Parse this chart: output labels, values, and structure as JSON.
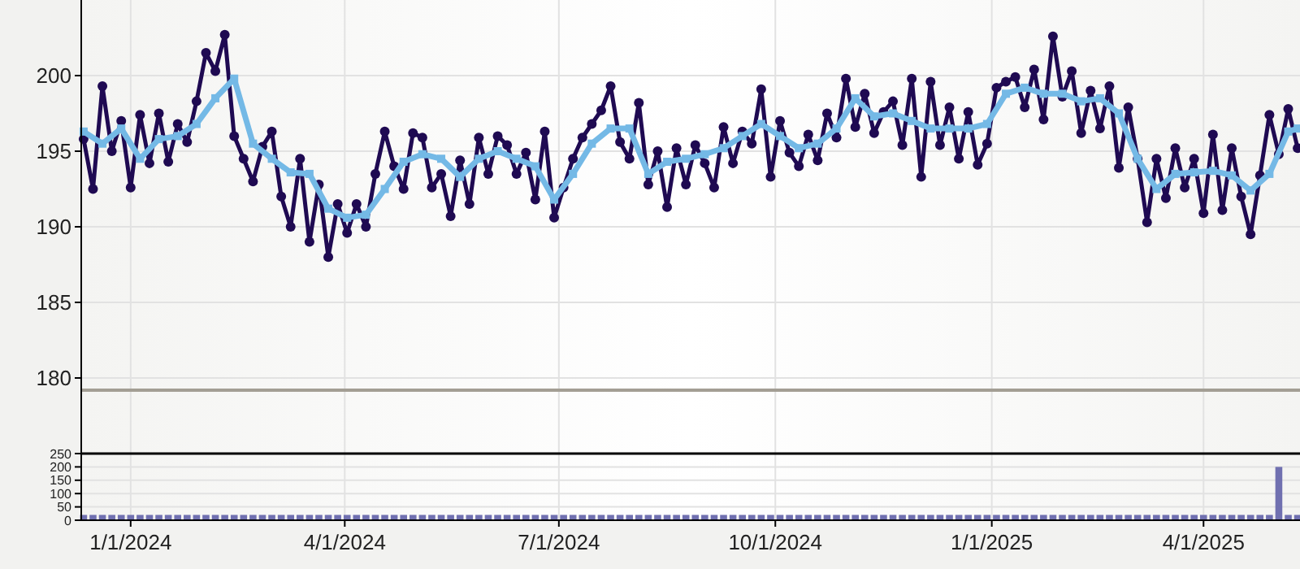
{
  "chart_data": [
    {
      "type": "line",
      "tick_labels": "y",
      "grid": true,
      "xlim": [
        "2023-12-11",
        "2025-05-12"
      ],
      "ylim": [
        175,
        205
      ],
      "yticks": [
        180,
        185,
        190,
        195,
        200
      ],
      "xticks": [
        {
          "value": "2024-01-01",
          "label": null
        },
        {
          "value": "2024-04-01",
          "label": null
        },
        {
          "value": "2024-07-01",
          "label": null
        },
        {
          "value": "2024-10-01",
          "label": null
        },
        {
          "value": "2025-01-01",
          "label": null
        },
        {
          "value": "2025-04-01",
          "label": null
        }
      ],
      "ref_lines": [
        {
          "axis": "y",
          "value": 179.2,
          "color": "#a39e94"
        }
      ],
      "series": [
        {
          "color": "#1f0a52",
          "marker": "circle",
          "x": [
            "2023-12-12",
            "2023-12-16",
            "2023-12-20",
            "2023-12-24",
            "2023-12-28",
            "2024-01-01",
            "2024-01-05",
            "2024-01-09",
            "2024-01-13",
            "2024-01-17",
            "2024-01-21",
            "2024-01-25",
            "2024-01-29",
            "2024-02-02",
            "2024-02-06",
            "2024-02-10",
            "2024-02-14",
            "2024-02-18",
            "2024-02-22",
            "2024-02-26",
            "2024-03-01",
            "2024-03-05",
            "2024-03-09",
            "2024-03-13",
            "2024-03-17",
            "2024-03-21",
            "2024-03-25",
            "2024-03-29",
            "2024-04-02",
            "2024-04-06",
            "2024-04-10",
            "2024-04-14",
            "2024-04-18",
            "2024-04-22",
            "2024-04-26",
            "2024-04-30",
            "2024-05-04",
            "2024-05-08",
            "2024-05-12",
            "2024-05-16",
            "2024-05-20",
            "2024-05-24",
            "2024-05-28",
            "2024-06-01",
            "2024-06-05",
            "2024-06-09",
            "2024-06-13",
            "2024-06-17",
            "2024-06-21",
            "2024-06-25",
            "2024-06-29",
            "2024-07-03",
            "2024-07-07",
            "2024-07-11",
            "2024-07-15",
            "2024-07-19",
            "2024-07-23",
            "2024-07-27",
            "2024-07-31",
            "2024-08-04",
            "2024-08-08",
            "2024-08-12",
            "2024-08-16",
            "2024-08-20",
            "2024-08-24",
            "2024-08-28",
            "2024-09-01",
            "2024-09-05",
            "2024-09-09",
            "2024-09-13",
            "2024-09-17",
            "2024-09-21",
            "2024-09-25",
            "2024-09-29",
            "2024-10-03",
            "2024-10-07",
            "2024-10-11",
            "2024-10-15",
            "2024-10-19",
            "2024-10-23",
            "2024-10-27",
            "2024-10-31",
            "2024-11-04",
            "2024-11-08",
            "2024-11-12",
            "2024-11-16",
            "2024-11-20",
            "2024-11-24",
            "2024-11-28",
            "2024-12-02",
            "2024-12-06",
            "2024-12-10",
            "2024-12-14",
            "2024-12-18",
            "2024-12-22",
            "2024-12-26",
            "2024-12-30",
            "2025-01-03",
            "2025-01-07",
            "2025-01-11",
            "2025-01-15",
            "2025-01-19",
            "2025-01-23",
            "2025-01-27",
            "2025-01-31",
            "2025-02-04",
            "2025-02-08",
            "2025-02-12",
            "2025-02-16",
            "2025-02-20",
            "2025-02-24",
            "2025-02-28",
            "2025-03-04",
            "2025-03-08",
            "2025-03-12",
            "2025-03-16",
            "2025-03-20",
            "2025-03-24",
            "2025-03-28",
            "2025-04-01",
            "2025-04-05",
            "2025-04-09",
            "2025-04-13",
            "2025-04-17",
            "2025-04-21",
            "2025-04-25",
            "2025-04-29",
            "2025-05-03",
            "2025-05-07",
            "2025-05-11"
          ],
          "values": [
            195.8,
            192.5,
            199.3,
            195,
            197,
            192.6,
            197.4,
            194.2,
            197.5,
            194.3,
            196.8,
            195.6,
            198.3,
            201.5,
            200.3,
            202.7,
            196,
            194.5,
            193,
            195.3,
            196.3,
            192,
            190,
            194.5,
            189,
            192.8,
            188,
            191.5,
            189.6,
            191.5,
            190,
            193.5,
            196.3,
            194,
            192.5,
            196.2,
            195.9,
            192.6,
            193.5,
            190.7,
            194.4,
            191.5,
            195.9,
            193.5,
            196,
            195.4,
            193.5,
            194.9,
            191.8,
            196.3,
            190.6,
            192.6,
            194.5,
            195.9,
            196.8,
            197.7,
            199.3,
            195.6,
            194.5,
            198.2,
            192.8,
            195,
            191.3,
            195.2,
            192.8,
            195.4,
            194.2,
            192.6,
            196.6,
            194.2,
            196.3,
            195.5,
            199.1,
            193.3,
            197,
            194.9,
            194,
            196.1,
            194.4,
            197.5,
            195.9,
            199.8,
            196.6,
            198.8,
            196.2,
            197.6,
            198.3,
            195.4,
            199.8,
            193.3,
            199.6,
            195.4,
            197.9,
            194.5,
            197.6,
            194.1,
            195.5,
            199.2,
            199.6,
            199.9,
            197.9,
            200.4,
            197.1,
            202.6,
            198.6,
            200.3,
            196.2,
            199,
            196.5,
            199.3,
            193.9,
            197.9,
            194.5,
            190.3,
            194.5,
            191.9,
            195.2,
            192.6,
            194.5,
            190.9,
            196.1,
            191.1,
            195.2,
            192,
            189.5,
            193.4,
            197.4,
            194.8,
            197.8,
            195.2
          ]
        },
        {
          "color": "#74b9e6",
          "marker": "square",
          "x": [
            "2023-12-12",
            "2023-12-20",
            "2023-12-28",
            "2024-01-05",
            "2024-01-13",
            "2024-01-21",
            "2024-01-29",
            "2024-02-06",
            "2024-02-14",
            "2024-02-22",
            "2024-03-01",
            "2024-03-09",
            "2024-03-17",
            "2024-03-25",
            "2024-04-02",
            "2024-04-10",
            "2024-04-18",
            "2024-04-26",
            "2024-05-04",
            "2024-05-12",
            "2024-05-20",
            "2024-05-28",
            "2024-06-05",
            "2024-06-13",
            "2024-06-21",
            "2024-06-29",
            "2024-07-07",
            "2024-07-15",
            "2024-07-23",
            "2024-07-31",
            "2024-08-08",
            "2024-08-16",
            "2024-08-24",
            "2024-09-01",
            "2024-09-09",
            "2024-09-17",
            "2024-09-25",
            "2024-10-03",
            "2024-10-11",
            "2024-10-19",
            "2024-10-27",
            "2024-11-04",
            "2024-11-12",
            "2024-11-20",
            "2024-11-28",
            "2024-12-06",
            "2024-12-14",
            "2024-12-22",
            "2024-12-30",
            "2025-01-07",
            "2025-01-15",
            "2025-01-23",
            "2025-01-31",
            "2025-02-08",
            "2025-02-16",
            "2025-02-24",
            "2025-03-04",
            "2025-03-12",
            "2025-03-20",
            "2025-03-28",
            "2025-04-05",
            "2025-04-13",
            "2025-04-21",
            "2025-04-29",
            "2025-05-07",
            "2025-05-11"
          ],
          "values": [
            196.3,
            195.5,
            196.5,
            194.5,
            195.8,
            196,
            196.8,
            198.5,
            199.8,
            195.5,
            194.5,
            193.6,
            193.5,
            191.2,
            190.6,
            190.8,
            192.5,
            194.3,
            194.8,
            194.5,
            193.3,
            194.5,
            195,
            194.5,
            194,
            191.8,
            193.5,
            195.5,
            196.5,
            196.5,
            193.5,
            194.3,
            194.5,
            194.8,
            195.2,
            196,
            196.8,
            196,
            195.2,
            195.5,
            196.5,
            198.5,
            197.3,
            197.5,
            197,
            196.5,
            196.5,
            196.5,
            196.8,
            198.8,
            199.2,
            198.8,
            198.8,
            198.3,
            198.5,
            197.5,
            194.5,
            192.5,
            193.5,
            193.6,
            193.7,
            193.4,
            192.4,
            193.5,
            196.3,
            196.5
          ]
        }
      ]
    },
    {
      "type": "bar",
      "grid": true,
      "xlim": [
        "2023-12-11",
        "2025-05-12"
      ],
      "ylim": [
        0,
        250
      ],
      "yticks": [
        0,
        50,
        100,
        150,
        200,
        250
      ],
      "xticks": [
        {
          "value": "2024-01-01",
          "label": "1/1/2024"
        },
        {
          "value": "2024-04-01",
          "label": "4/1/2024"
        },
        {
          "value": "2024-07-01",
          "label": "7/1/2024"
        },
        {
          "value": "2024-10-01",
          "label": "10/1/2024"
        },
        {
          "value": "2025-01-01",
          "label": "1/1/2025"
        },
        {
          "value": "2025-04-01",
          "label": "4/1/2025"
        }
      ],
      "series": [
        {
          "color": "#7070b0",
          "x": [
            "2023-12-12",
            "2023-12-16",
            "2023-12-20",
            "2023-12-24",
            "2023-12-28",
            "2024-01-01",
            "2024-01-05",
            "2024-01-09",
            "2024-01-13",
            "2024-01-17",
            "2024-01-21",
            "2024-01-25",
            "2024-01-29",
            "2024-02-02",
            "2024-02-06",
            "2024-02-10",
            "2024-02-14",
            "2024-02-18",
            "2024-02-22",
            "2024-02-26",
            "2024-03-01",
            "2024-03-05",
            "2024-03-09",
            "2024-03-13",
            "2024-03-17",
            "2024-03-21",
            "2024-03-25",
            "2024-03-29",
            "2024-04-02",
            "2024-04-06",
            "2024-04-10",
            "2024-04-14",
            "2024-04-18",
            "2024-04-22",
            "2024-04-26",
            "2024-04-30",
            "2024-05-04",
            "2024-05-08",
            "2024-05-12",
            "2024-05-16",
            "2024-05-20",
            "2024-05-24",
            "2024-05-28",
            "2024-06-01",
            "2024-06-05",
            "2024-06-09",
            "2024-06-13",
            "2024-06-17",
            "2024-06-21",
            "2024-06-25",
            "2024-06-29",
            "2024-07-03",
            "2024-07-07",
            "2024-07-11",
            "2024-07-15",
            "2024-07-19",
            "2024-07-23",
            "2024-07-27",
            "2024-07-31",
            "2024-08-04",
            "2024-08-08",
            "2024-08-12",
            "2024-08-16",
            "2024-08-20",
            "2024-08-24",
            "2024-08-28",
            "2024-09-01",
            "2024-09-05",
            "2024-09-09",
            "2024-09-13",
            "2024-09-17",
            "2024-09-21",
            "2024-09-25",
            "2024-09-29",
            "2024-10-03",
            "2024-10-07",
            "2024-10-11",
            "2024-10-15",
            "2024-10-19",
            "2024-10-23",
            "2024-10-27",
            "2024-10-31",
            "2024-11-04",
            "2024-11-08",
            "2024-11-12",
            "2024-11-16",
            "2024-11-20",
            "2024-11-24",
            "2024-11-28",
            "2024-12-02",
            "2024-12-06",
            "2024-12-10",
            "2024-12-14",
            "2024-12-18",
            "2024-12-22",
            "2024-12-26",
            "2024-12-30",
            "2025-01-03",
            "2025-01-07",
            "2025-01-11",
            "2025-01-15",
            "2025-01-19",
            "2025-01-23",
            "2025-01-27",
            "2025-01-31",
            "2025-02-04",
            "2025-02-08",
            "2025-02-12",
            "2025-02-16",
            "2025-02-20",
            "2025-02-24",
            "2025-02-28",
            "2025-03-04",
            "2025-03-08",
            "2025-03-12",
            "2025-03-16",
            "2025-03-20",
            "2025-03-24",
            "2025-03-28",
            "2025-04-01",
            "2025-04-05",
            "2025-04-09",
            "2025-04-13",
            "2025-04-17",
            "2025-04-21",
            "2025-04-25",
            "2025-04-29",
            "2025-05-03",
            "2025-05-07",
            "2025-05-11"
          ],
          "values": [
            20,
            20,
            20,
            20,
            20,
            20,
            20,
            20,
            20,
            20,
            20,
            20,
            20,
            20,
            20,
            20,
            20,
            20,
            20,
            20,
            20,
            20,
            20,
            20,
            20,
            20,
            20,
            20,
            20,
            20,
            20,
            20,
            20,
            20,
            20,
            20,
            20,
            20,
            20,
            20,
            20,
            20,
            20,
            20,
            20,
            20,
            20,
            20,
            20,
            20,
            20,
            20,
            20,
            20,
            20,
            20,
            20,
            20,
            20,
            20,
            20,
            20,
            20,
            20,
            20,
            20,
            20,
            20,
            20,
            20,
            20,
            20,
            20,
            20,
            20,
            20,
            20,
            20,
            20,
            20,
            20,
            20,
            20,
            20,
            20,
            20,
            20,
            20,
            20,
            20,
            20,
            20,
            20,
            20,
            20,
            20,
            20,
            20,
            20,
            20,
            20,
            20,
            20,
            20,
            20,
            20,
            20,
            20,
            20,
            20,
            20,
            20,
            20,
            20,
            20,
            20,
            20,
            20,
            20,
            20,
            20,
            20,
            20,
            20,
            20,
            20,
            20,
            200,
            20,
            20
          ]
        }
      ]
    }
  ]
}
